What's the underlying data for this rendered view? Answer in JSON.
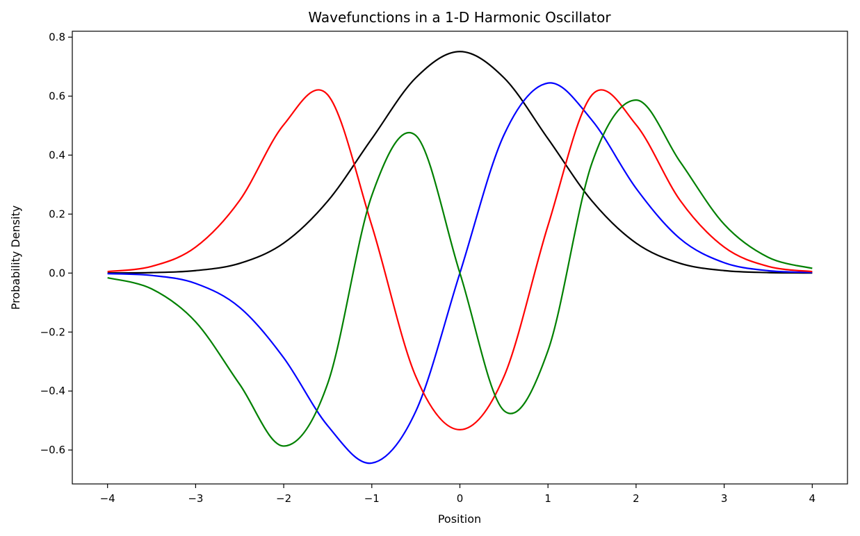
{
  "chart_data": {
    "type": "line",
    "title": "Wavefunctions in a 1-D Harmonic Oscillator",
    "xlabel": "Position",
    "ylabel": "Probability Density",
    "xlim": [
      -4.4,
      4.4
    ],
    "ylim": [
      -0.715,
      0.82
    ],
    "xticks": [
      -4,
      -3,
      -2,
      -1,
      0,
      1,
      2,
      3,
      4
    ],
    "xtick_labels": [
      "−4",
      "−3",
      "−2",
      "−1",
      "0",
      "1",
      "2",
      "3",
      "4"
    ],
    "yticks": [
      -0.6,
      -0.4,
      -0.2,
      0.0,
      0.2,
      0.4,
      0.6,
      0.8
    ],
    "ytick_labels": [
      "−0.6",
      "−0.4",
      "−0.2",
      "0.0",
      "0.2",
      "0.4",
      "0.6",
      "0.8"
    ],
    "grid": false,
    "legend": null,
    "x": [
      -4.0,
      -3.5,
      -3.0,
      -2.5,
      -2.0,
      -1.5,
      -1.0,
      -0.5,
      0.0,
      0.5,
      1.0,
      1.5,
      2.0,
      2.5,
      3.0,
      3.5,
      4.0
    ],
    "series": [
      {
        "color": "#000000",
        "values": [
          0.0003,
          0.0016,
          0.0083,
          0.0329,
          0.1016,
          0.2442,
          0.4556,
          0.6622,
          0.7511,
          0.6622,
          0.4556,
          0.2442,
          0.1016,
          0.0329,
          0.0083,
          0.0016,
          0.0003
        ]
      },
      {
        "color": "#0000ff",
        "values": [
          -0.002,
          -0.008,
          -0.0352,
          -0.1165,
          -0.2874,
          -0.518,
          -0.6443,
          -0.4683,
          0.0,
          0.4683,
          0.6443,
          0.518,
          0.2874,
          0.1165,
          0.0352,
          0.008,
          0.002
        ]
      },
      {
        "color": "#ff0000",
        "values": [
          0.005,
          0.0226,
          0.088,
          0.2464,
          0.503,
          0.6042,
          0.1611,
          -0.3512,
          -0.5311,
          -0.3512,
          0.1611,
          0.6042,
          0.503,
          0.2464,
          0.088,
          0.0226,
          0.005
        ]
      },
      {
        "color": "#008000",
        "values": [
          -0.016,
          -0.0535,
          -0.1655,
          -0.3773,
          -0.5866,
          -0.3739,
          0.263,
          0.4664,
          0.0,
          -0.4664,
          -0.263,
          0.3739,
          0.5866,
          0.3773,
          0.1655,
          0.0535,
          0.016
        ]
      }
    ]
  }
}
